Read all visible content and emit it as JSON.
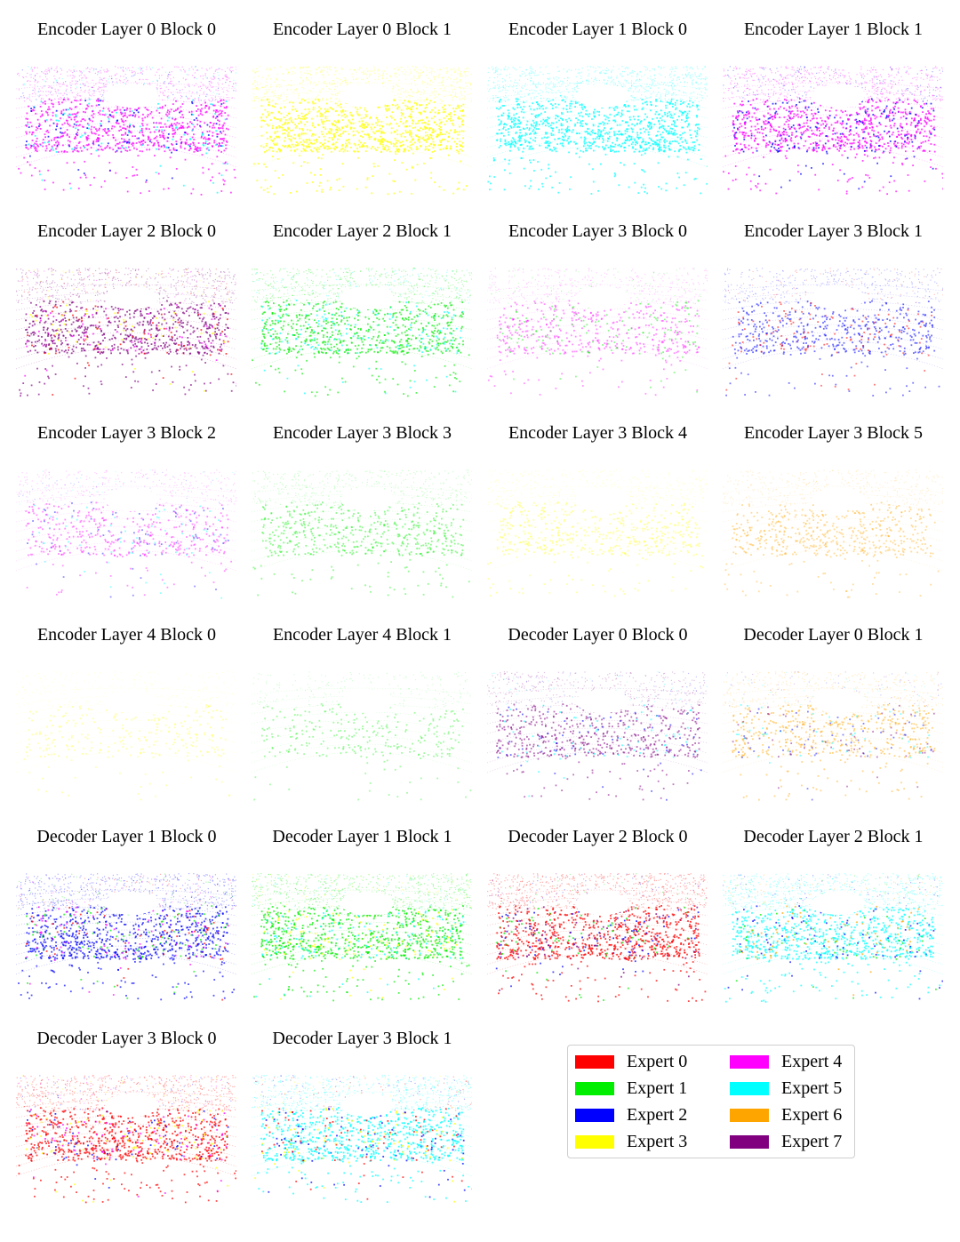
{
  "expert_colors": [
    "#ff0000",
    "#00ee00",
    "#0000ff",
    "#ffff00",
    "#ff00ff",
    "#00ffff",
    "#ffa500",
    "#800080"
  ],
  "panels": [
    {
      "title": "Encoder Layer 0 Block 0",
      "dominant": 4,
      "secondary": [
        5,
        2
      ],
      "density": 1.0,
      "alpha": 0.95
    },
    {
      "title": "Encoder Layer 0 Block 1",
      "dominant": 3,
      "secondary": [],
      "density": 1.0,
      "alpha": 0.95
    },
    {
      "title": "Encoder Layer 1 Block 0",
      "dominant": 5,
      "secondary": [],
      "density": 1.0,
      "alpha": 0.95
    },
    {
      "title": "Encoder Layer 1 Block 1",
      "dominant": 4,
      "secondary": [
        2
      ],
      "density": 1.0,
      "alpha": 0.95
    },
    {
      "title": "Encoder Layer 2 Block 0",
      "dominant": 7,
      "secondary": [
        0,
        3,
        4
      ],
      "density": 0.9,
      "alpha": 0.9
    },
    {
      "title": "Encoder Layer 2 Block 1",
      "dominant": 1,
      "secondary": [
        5
      ],
      "density": 0.85,
      "alpha": 0.85
    },
    {
      "title": "Encoder Layer 3 Block 0",
      "dominant": 4,
      "secondary": [
        1
      ],
      "density": 0.6,
      "alpha": 0.55
    },
    {
      "title": "Encoder Layer 3 Block 1",
      "dominant": 2,
      "secondary": [
        0
      ],
      "density": 0.6,
      "alpha": 0.7
    },
    {
      "title": "Encoder Layer 3 Block 2",
      "dominant": 4,
      "secondary": [
        2,
        5
      ],
      "density": 0.55,
      "alpha": 0.55
    },
    {
      "title": "Encoder Layer 3 Block 3",
      "dominant": 1,
      "secondary": [],
      "density": 0.55,
      "alpha": 0.55
    },
    {
      "title": "Encoder Layer 3 Block 4",
      "dominant": 3,
      "secondary": [],
      "density": 0.55,
      "alpha": 0.45
    },
    {
      "title": "Encoder Layer 3 Block 5",
      "dominant": 6,
      "secondary": [],
      "density": 0.55,
      "alpha": 0.5
    },
    {
      "title": "Encoder Layer 4 Block 0",
      "dominant": 3,
      "secondary": [],
      "density": 0.3,
      "alpha": 0.4
    },
    {
      "title": "Encoder Layer 4 Block 1",
      "dominant": 1,
      "secondary": [],
      "density": 0.3,
      "alpha": 0.45
    },
    {
      "title": "Decoder Layer 0 Block 0",
      "dominant": 7,
      "secondary": [
        2,
        5
      ],
      "density": 0.65,
      "alpha": 0.7
    },
    {
      "title": "Decoder Layer 0 Block 1",
      "dominant": 6,
      "secondary": [
        5,
        7,
        2
      ],
      "density": 0.65,
      "alpha": 0.6
    },
    {
      "title": "Decoder Layer 1 Block 0",
      "dominant": 2,
      "secondary": [
        0,
        1,
        4
      ],
      "density": 1.0,
      "alpha": 0.9
    },
    {
      "title": "Decoder Layer 1 Block 1",
      "dominant": 1,
      "secondary": [
        3,
        5
      ],
      "density": 1.0,
      "alpha": 0.9
    },
    {
      "title": "Decoder Layer 2 Block 0",
      "dominant": 0,
      "secondary": [
        1,
        2,
        7
      ],
      "density": 1.0,
      "alpha": 0.95
    },
    {
      "title": "Decoder Layer 2 Block 1",
      "dominant": 5,
      "secondary": [
        1,
        2,
        6
      ],
      "density": 1.0,
      "alpha": 0.9
    },
    {
      "title": "Decoder Layer 3 Block 0",
      "dominant": 0,
      "secondary": [
        2,
        3,
        4
      ],
      "density": 1.0,
      "alpha": 0.95
    },
    {
      "title": "Decoder Layer 3 Block 1",
      "dominant": 5,
      "secondary": [
        0,
        2,
        3
      ],
      "density": 1.0,
      "alpha": 0.95
    }
  ],
  "legend": [
    {
      "label": "Expert 0",
      "color": "#ff0000"
    },
    {
      "label": "Expert 1",
      "color": "#00ee00"
    },
    {
      "label": "Expert 2",
      "color": "#0000ff"
    },
    {
      "label": "Expert 3",
      "color": "#ffff00"
    },
    {
      "label": "Expert 4",
      "color": "#ff00ff"
    },
    {
      "label": "Expert 5",
      "color": "#00ffff"
    },
    {
      "label": "Expert 6",
      "color": "#ffa500"
    },
    {
      "label": "Expert 7",
      "color": "#800080"
    }
  ]
}
